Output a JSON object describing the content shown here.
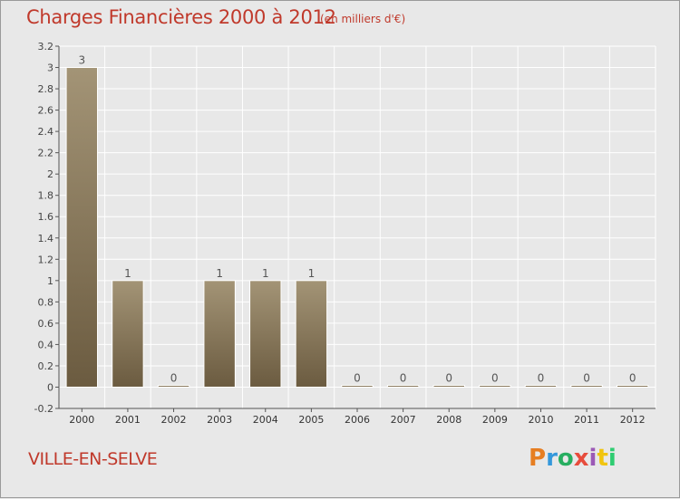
{
  "header": {
    "title": "Charges Financières 2000 à 2012",
    "subtitle": "(en milliers d'€)"
  },
  "footer": {
    "commune": "VILLE-EN-SELVE",
    "logo_text": "Proxiti"
  },
  "colors": {
    "title": "#c0392b",
    "bar_top": "#a39476",
    "bar_bottom": "#6b5b40",
    "background": "#e8e8e8",
    "grid": "#ffffff",
    "logo_letters": [
      "#e67e22",
      "#3498db",
      "#27ae60",
      "#e74c3c",
      "#9b59b6",
      "#f1c40f",
      "#2ecc71"
    ]
  },
  "chart_data": {
    "type": "bar",
    "title": "Charges Financières 2000 à 2012",
    "subtitle": "(en milliers d'€)",
    "categories": [
      "2000",
      "2001",
      "2002",
      "2003",
      "2004",
      "2005",
      "2006",
      "2007",
      "2008",
      "2009",
      "2010",
      "2011",
      "2012"
    ],
    "values": [
      3,
      1,
      0,
      1,
      1,
      1,
      0,
      0,
      0,
      0,
      0,
      0,
      0
    ],
    "data_labels": [
      "3",
      "1",
      "0",
      "1",
      "1",
      "1",
      "0",
      "0",
      "0",
      "0",
      "0",
      "0",
      "0"
    ],
    "y_ticks": [
      "-0.2",
      "0",
      "0.2",
      "0.4",
      "0.6",
      "0.8",
      "1",
      "1.2",
      "1.4",
      "1.6",
      "1.8",
      "2",
      "2.2",
      "2.4",
      "2.6",
      "2.8",
      "3",
      "3.2"
    ],
    "ylim": [
      -0.2,
      3.2
    ],
    "grid": true,
    "legend": "none"
  }
}
